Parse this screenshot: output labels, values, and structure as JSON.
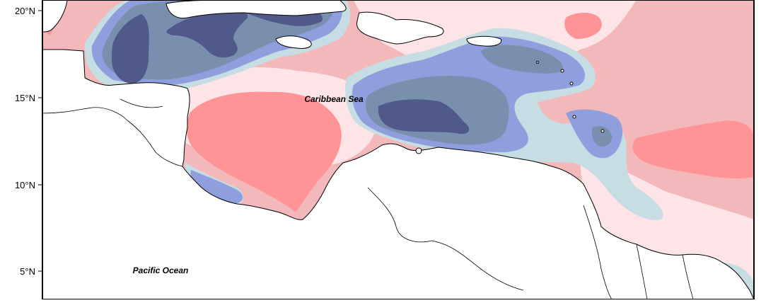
{
  "map": {
    "labels": {
      "caribbean_sea": "Caribbean Sea",
      "pacific_ocean": "Pacific Ocean"
    },
    "lat_ticks": [
      "20°N",
      "15°N",
      "10°N",
      "5°N"
    ],
    "palette": {
      "strong_negative": "#4f5a8a",
      "negative": "#7890ad",
      "moderate_negative": "#8f9edc",
      "weak_negative": "#c6dde3",
      "near_zero": "#fde4e6",
      "weak_positive": "#f3b8b9",
      "positive": "#ff9496",
      "land": "#ffffff",
      "coastline": "#000000"
    }
  }
}
